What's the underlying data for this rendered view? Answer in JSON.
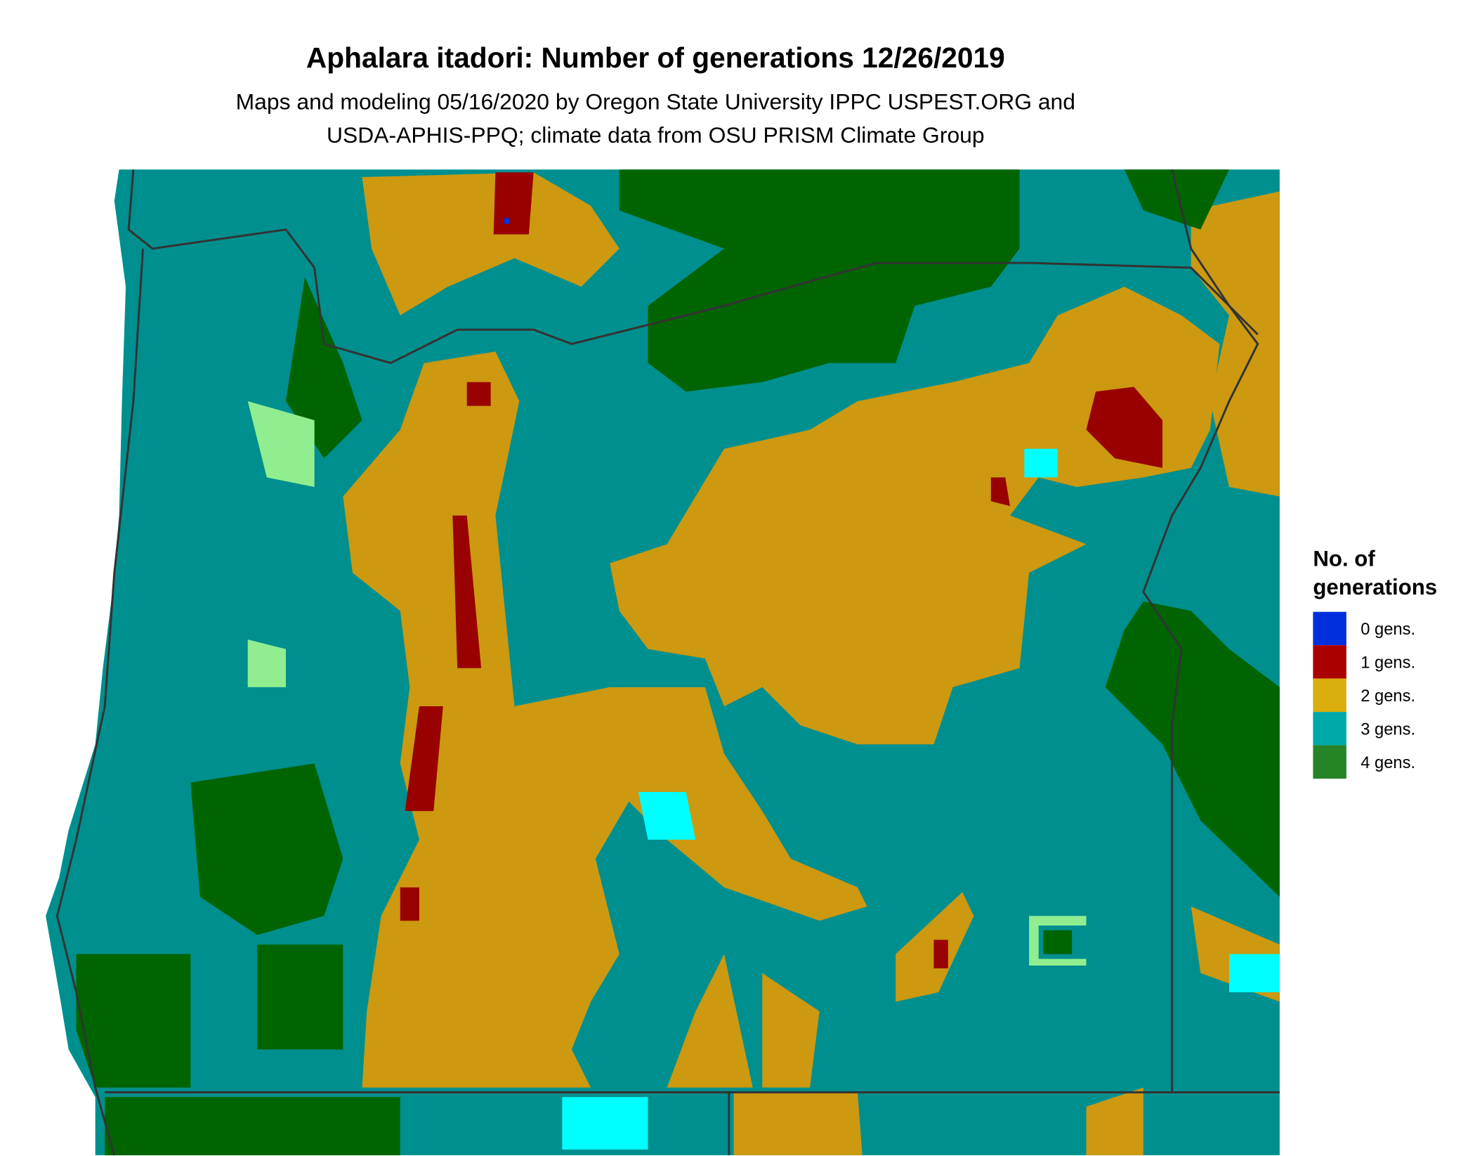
{
  "title": "Aphalara itadori: Number of generations 12/26/2019",
  "subtitle_lines": [
    "Maps and modeling 05/16/2020 by Oregon State University IPPC USPEST.ORG and",
    "USDA-APHIS-PPQ; climate data from OSU PRISM Climate Group"
  ],
  "legend": {
    "title_lines": [
      "No. of",
      "generations"
    ],
    "items": [
      {
        "label": "0 gens.",
        "color": "#0030DD"
      },
      {
        "label": "1 gens.",
        "color": "#AA0000"
      },
      {
        "label": "2 gens.",
        "color": "#DAAE0C"
      },
      {
        "label": "3 gens.",
        "color": "#00A9A9"
      },
      {
        "label": "4 gens.",
        "color": "#258426"
      }
    ]
  },
  "map_colors": {
    "gens_1": "#990000",
    "gens_2": "#CC9910",
    "gens_3": "#008F8F",
    "gens_4": "#006400",
    "cyan": "#00FFFF",
    "light_green": "#90EE90",
    "yellow": "#FFFF00",
    "borders": "#333333"
  }
}
